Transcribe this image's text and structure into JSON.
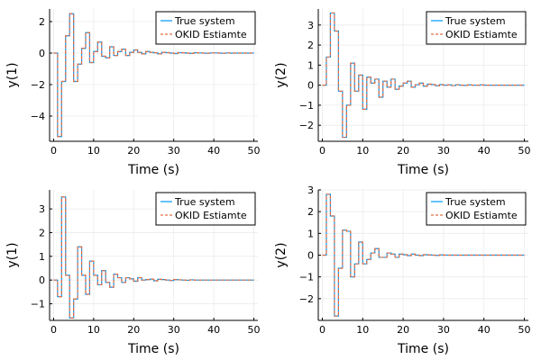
{
  "colors": {
    "true_system": "#009AFA",
    "okid_estimate": "#E26F46",
    "grid": "#EBEBEB",
    "axis": "#000000"
  },
  "chart_data": [
    {
      "type": "line",
      "xlabel": "Time (s)",
      "ylabel": "y(1)",
      "xlim": [
        -1,
        51
      ],
      "ylim": [
        -5.6,
        2.8
      ],
      "xticks": [
        "0",
        "10",
        "20",
        "30",
        "40",
        "50"
      ],
      "yticks": [
        "−4",
        "−2",
        "0",
        "2"
      ],
      "grid": true,
      "legend_position": "top-right",
      "step": true,
      "x": [
        0,
        1,
        2,
        3,
        4,
        5,
        6,
        7,
        8,
        9,
        10,
        11,
        12,
        13,
        14,
        15,
        16,
        17,
        18,
        19,
        20,
        21,
        22,
        23,
        24,
        25,
        26,
        27,
        28,
        29,
        30,
        31,
        32,
        33,
        34,
        35,
        36,
        37,
        38,
        39,
        40,
        41,
        42,
        43,
        44,
        45,
        46,
        47,
        48,
        49,
        50
      ],
      "series": [
        {
          "name": "True system",
          "style": "solid",
          "values": [
            0,
            -5.3,
            -1.8,
            1.1,
            2.5,
            -1.8,
            -0.7,
            0.3,
            1.3,
            -0.6,
            0.1,
            0.7,
            -0.2,
            -0.3,
            0.4,
            -0.15,
            0.1,
            0.25,
            -0.15,
            0.05,
            0.2,
            0.05,
            -0.05,
            0.1,
            0.05,
            0.02,
            -0.05,
            0.05,
            0.03,
            0,
            -0.03,
            0.03,
            0.02,
            0,
            -0.02,
            0.02,
            0.01,
            0,
            -0.01,
            0.01,
            0.01,
            0,
            -0.01,
            0.01,
            0,
            0,
            0,
            0,
            0,
            0,
            0
          ]
        },
        {
          "name": "OKID Estiamte",
          "style": "dashed",
          "values": [
            0,
            -5.3,
            -1.8,
            1.1,
            2.5,
            -1.8,
            -0.7,
            0.3,
            1.3,
            -0.6,
            0.1,
            0.7,
            -0.2,
            -0.3,
            0.4,
            -0.15,
            0.1,
            0.25,
            -0.15,
            0.05,
            0.2,
            0.05,
            -0.05,
            0.1,
            0.05,
            0.02,
            -0.05,
            0.05,
            0.03,
            0,
            -0.03,
            0.03,
            0.02,
            0,
            -0.02,
            0.02,
            0.01,
            0,
            -0.01,
            0.01,
            0.01,
            0,
            -0.01,
            0.01,
            0,
            0,
            0,
            0,
            0,
            0,
            0
          ]
        }
      ]
    },
    {
      "type": "line",
      "xlabel": "Time (s)",
      "ylabel": "y(2)",
      "xlim": [
        -1,
        51
      ],
      "ylim": [
        -2.8,
        3.8
      ],
      "xticks": [
        "0",
        "10",
        "20",
        "30",
        "40",
        "50"
      ],
      "yticks": [
        "−2",
        "−1",
        "0",
        "1",
        "2",
        "3"
      ],
      "grid": true,
      "legend_position": "top-right",
      "step": true,
      "x": [
        0,
        1,
        2,
        3,
        4,
        5,
        6,
        7,
        8,
        9,
        10,
        11,
        12,
        13,
        14,
        15,
        16,
        17,
        18,
        19,
        20,
        21,
        22,
        23,
        24,
        25,
        26,
        27,
        28,
        29,
        30,
        31,
        32,
        33,
        34,
        35,
        36,
        37,
        38,
        39,
        40,
        41,
        42,
        43,
        44,
        45,
        46,
        47,
        48,
        49,
        50
      ],
      "series": [
        {
          "name": "True system",
          "style": "solid",
          "values": [
            0,
            1.4,
            3.6,
            2.7,
            -0.3,
            -2.6,
            -1.0,
            1.1,
            -0.3,
            0.5,
            -1.2,
            0.4,
            0.1,
            0.3,
            -0.6,
            0.2,
            -0.1,
            0.3,
            -0.2,
            -0.05,
            0.1,
            0.2,
            -0.1,
            0.02,
            0.1,
            -0.05,
            0.05,
            0.03,
            -0.03,
            0.03,
            0,
            0.01,
            -0.02,
            0.02,
            0,
            -0.01,
            0.01,
            0,
            0,
            0.01,
            0,
            0,
            0,
            0,
            0,
            0,
            0,
            0,
            0,
            0,
            0
          ]
        },
        {
          "name": "OKID Estiamte",
          "style": "dashed",
          "values": [
            0,
            1.4,
            3.6,
            2.7,
            -0.3,
            -2.6,
            -1.0,
            1.1,
            -0.3,
            0.5,
            -1.2,
            0.4,
            0.1,
            0.3,
            -0.6,
            0.2,
            -0.1,
            0.3,
            -0.2,
            -0.05,
            0.1,
            0.2,
            -0.1,
            0.02,
            0.1,
            -0.05,
            0.05,
            0.03,
            -0.03,
            0.03,
            0,
            0.01,
            -0.02,
            0.02,
            0,
            -0.01,
            0.01,
            0,
            0,
            0.01,
            0,
            0,
            0,
            0,
            0,
            0,
            0,
            0,
            0,
            0,
            0
          ]
        }
      ]
    },
    {
      "type": "line",
      "xlabel": "Time (s)",
      "ylabel": "y(1)",
      "xlim": [
        -1,
        51
      ],
      "ylim": [
        -1.7,
        3.8
      ],
      "xticks": [
        "0",
        "10",
        "20",
        "30",
        "40",
        "50"
      ],
      "yticks": [
        "−1",
        "0",
        "1",
        "2",
        "3"
      ],
      "grid": true,
      "legend_position": "top-right",
      "step": true,
      "x": [
        0,
        1,
        2,
        3,
        4,
        5,
        6,
        7,
        8,
        9,
        10,
        11,
        12,
        13,
        14,
        15,
        16,
        17,
        18,
        19,
        20,
        21,
        22,
        23,
        24,
        25,
        26,
        27,
        28,
        29,
        30,
        31,
        32,
        33,
        34,
        35,
        36,
        37,
        38,
        39,
        40,
        41,
        42,
        43,
        44,
        45,
        46,
        47,
        48,
        49,
        50
      ],
      "series": [
        {
          "name": "True system",
          "style": "solid",
          "values": [
            0,
            -0.7,
            3.5,
            0.2,
            -1.6,
            -0.8,
            1.4,
            0.2,
            -0.6,
            0.8,
            0.2,
            -0.2,
            0.4,
            -0.1,
            -0.3,
            0.25,
            0.1,
            -0.1,
            0.1,
            0.05,
            -0.05,
            0.1,
            0,
            0.02,
            0.04,
            -0.03,
            0.03,
            0.02,
            0,
            -0.02,
            0.02,
            0.01,
            0,
            -0.01,
            0.01,
            0,
            0,
            0,
            0,
            0,
            0,
            0,
            0,
            0,
            0,
            0,
            0,
            0,
            0,
            0,
            0
          ]
        },
        {
          "name": "OKID Estiamte",
          "style": "dashed",
          "values": [
            0,
            -0.7,
            3.5,
            0.2,
            -1.6,
            -0.8,
            1.4,
            0.2,
            -0.6,
            0.8,
            0.2,
            -0.2,
            0.4,
            -0.1,
            -0.3,
            0.25,
            0.1,
            -0.1,
            0.1,
            0.05,
            -0.05,
            0.1,
            0,
            0.02,
            0.04,
            -0.03,
            0.03,
            0.02,
            0,
            -0.02,
            0.02,
            0.01,
            0,
            -0.01,
            0.01,
            0,
            0,
            0,
            0,
            0,
            0,
            0,
            0,
            0,
            0,
            0,
            0,
            0,
            0,
            0,
            0
          ]
        }
      ]
    },
    {
      "type": "line",
      "xlabel": "Time (s)",
      "ylabel": "y(2)",
      "xlim": [
        -1,
        51
      ],
      "ylim": [
        -3.0,
        3.0
      ],
      "xticks": [
        "0",
        "10",
        "20",
        "30",
        "40",
        "50"
      ],
      "yticks": [
        "−2",
        "−1",
        "0",
        "1",
        "2",
        "3"
      ],
      "grid": true,
      "legend_position": "top-right",
      "step": true,
      "x": [
        0,
        1,
        2,
        3,
        4,
        5,
        6,
        7,
        8,
        9,
        10,
        11,
        12,
        13,
        14,
        15,
        16,
        17,
        18,
        19,
        20,
        21,
        22,
        23,
        24,
        25,
        26,
        27,
        28,
        29,
        30,
        31,
        32,
        33,
        34,
        35,
        36,
        37,
        38,
        39,
        40,
        41,
        42,
        43,
        44,
        45,
        46,
        47,
        48,
        49,
        50
      ],
      "series": [
        {
          "name": "True system",
          "style": "solid",
          "values": [
            0,
            2.8,
            1.8,
            -2.8,
            -0.6,
            1.15,
            1.1,
            -1.0,
            -0.4,
            0.6,
            -0.4,
            -0.2,
            0.1,
            0.3,
            -0.1,
            -0.1,
            0.1,
            0.05,
            -0.1,
            0.05,
            0.02,
            -0.02,
            0.05,
            0,
            -0.02,
            0.02,
            0.01,
            0,
            -0.01,
            0.01,
            0,
            0,
            0,
            0,
            0,
            0,
            0,
            0,
            0,
            0,
            0,
            0,
            0,
            0,
            0,
            0,
            0,
            0,
            0,
            0,
            0
          ]
        },
        {
          "name": "OKID Estiamte",
          "style": "dashed",
          "values": [
            0,
            2.8,
            1.8,
            -2.8,
            -0.6,
            1.15,
            1.1,
            -1.0,
            -0.4,
            0.6,
            -0.4,
            -0.2,
            0.1,
            0.3,
            -0.1,
            -0.1,
            0.1,
            0.05,
            -0.1,
            0.05,
            0.02,
            -0.02,
            0.05,
            0,
            -0.02,
            0.02,
            0.01,
            0,
            -0.01,
            0.01,
            0,
            0,
            0,
            0,
            0,
            0,
            0,
            0,
            0,
            0,
            0,
            0,
            0,
            0,
            0,
            0,
            0,
            0,
            0,
            0,
            0
          ]
        }
      ]
    }
  ]
}
